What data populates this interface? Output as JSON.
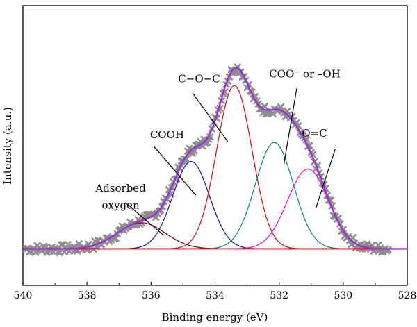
{
  "chart_data": {
    "type": "line",
    "title": "",
    "xlabel": "Binding energy (eV)",
    "ylabel": "Intensity (a.u.)",
    "xlim": [
      540,
      528
    ],
    "x_reversed": true,
    "ylim": [
      -0.15,
      1.0
    ],
    "xticks": [
      540,
      538,
      536,
      534,
      532,
      530,
      528
    ],
    "yticks_shown": false,
    "grid": false,
    "legend": "none",
    "colors": {
      "measured": "#8c8c8c",
      "envelope": "#9b30d9",
      "background": "#cc0000"
    },
    "baseline": 0.0,
    "measured_points": {
      "x_start": 539.9,
      "x_end": 528.6,
      "step": 0.05,
      "noise_amplitude": 0.018
    },
    "components": [
      {
        "label": "Adsorbed oxygen",
        "center": 536.3,
        "fwhm": 1.75,
        "height": 0.107,
        "color": "#7a1010"
      },
      {
        "label": "COOH",
        "center": 534.75,
        "fwhm": 1.35,
        "height": 0.359,
        "color": "#1a1ab3"
      },
      {
        "label": "C−O−C",
        "center": 533.4,
        "fwhm": 1.3,
        "height": 0.671,
        "color": "#d41a1a"
      },
      {
        "label": "COO⁻ or –OH",
        "center": 532.15,
        "fwhm": 1.4,
        "height": 0.437,
        "color": "#1a8c8c"
      },
      {
        "label": "O=C",
        "center": 531.1,
        "fwhm": 1.5,
        "height": 0.328,
        "color": "#e617e6"
      }
    ],
    "annotations": [
      {
        "text": "Adsorbed",
        "label_x": 536.95,
        "label_y": 0.235,
        "arrow_from": [
          536.8,
          0.19
        ],
        "arrow_to": [
          535.6,
          0.055
        ]
      },
      {
        "text": "oxygen",
        "label_x": 536.95,
        "label_y": 0.165
      },
      {
        "text": "COOH",
        "label_x": 535.5,
        "label_y": 0.455,
        "arrow_from": [
          535.9,
          0.42
        ],
        "arrow_to": [
          534.6,
          0.22
        ]
      },
      {
        "text": "C−O−C",
        "label_x": 534.5,
        "label_y": 0.685,
        "arrow_from": [
          534.7,
          0.64
        ],
        "arrow_to": [
          533.6,
          0.44
        ]
      },
      {
        "text": "COO⁻ or –OH",
        "label_x": 531.2,
        "label_y": 0.705,
        "arrow_from": [
          531.45,
          0.66
        ],
        "arrow_to": [
          531.85,
          0.35
        ]
      },
      {
        "text": "O=C",
        "label_x": 530.9,
        "label_y": 0.46,
        "arrow_from": [
          530.25,
          0.41
        ],
        "arrow_to": [
          530.85,
          0.17
        ]
      }
    ]
  }
}
